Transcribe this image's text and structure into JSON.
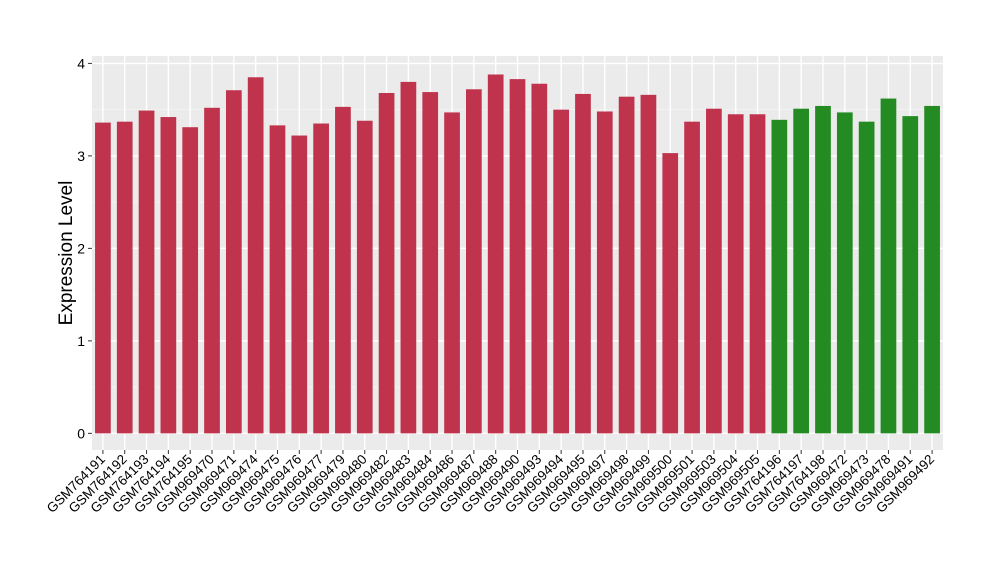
{
  "chart_data": {
    "type": "bar",
    "title": "",
    "xlabel": "",
    "ylabel": "Expression Level",
    "ylim": [
      -0.18,
      4.08
    ],
    "yticks": [
      0,
      1,
      2,
      3,
      4
    ],
    "grid": true,
    "legend": "none",
    "colors": {
      "group1": "#c0334d",
      "group2": "#238b22",
      "panel": "#ebebeb",
      "gridline": "#ffffff"
    },
    "categories": [
      "GSM764191",
      "GSM764192",
      "GSM764193",
      "GSM764194",
      "GSM764195",
      "GSM969470",
      "GSM969471",
      "GSM969474",
      "GSM969475",
      "GSM969476",
      "GSM969477",
      "GSM969479",
      "GSM969480",
      "GSM969482",
      "GSM969483",
      "GSM969484",
      "GSM969486",
      "GSM969487",
      "GSM969488",
      "GSM969490",
      "GSM969493",
      "GSM969494",
      "GSM969495",
      "GSM969497",
      "GSM969498",
      "GSM969499",
      "GSM969500",
      "GSM969501",
      "GSM969503",
      "GSM969504",
      "GSM969505",
      "GSM764196",
      "GSM764197",
      "GSM764198",
      "GSM969472",
      "GSM969473",
      "GSM969478",
      "GSM969491",
      "GSM969492"
    ],
    "values": [
      3.36,
      3.37,
      3.49,
      3.42,
      3.31,
      3.52,
      3.71,
      3.85,
      3.33,
      3.22,
      3.35,
      3.53,
      3.38,
      3.68,
      3.8,
      3.69,
      3.47,
      3.72,
      3.88,
      3.83,
      3.78,
      3.5,
      3.67,
      3.48,
      3.64,
      3.66,
      3.03,
      3.37,
      3.51,
      3.45,
      3.45,
      3.39,
      3.51,
      3.54,
      3.47,
      3.37,
      3.62,
      3.43,
      3.54
    ],
    "groups": [
      1,
      1,
      1,
      1,
      1,
      1,
      1,
      1,
      1,
      1,
      1,
      1,
      1,
      1,
      1,
      1,
      1,
      1,
      1,
      1,
      1,
      1,
      1,
      1,
      1,
      1,
      1,
      1,
      1,
      1,
      1,
      2,
      2,
      2,
      2,
      2,
      2,
      2,
      2
    ]
  }
}
